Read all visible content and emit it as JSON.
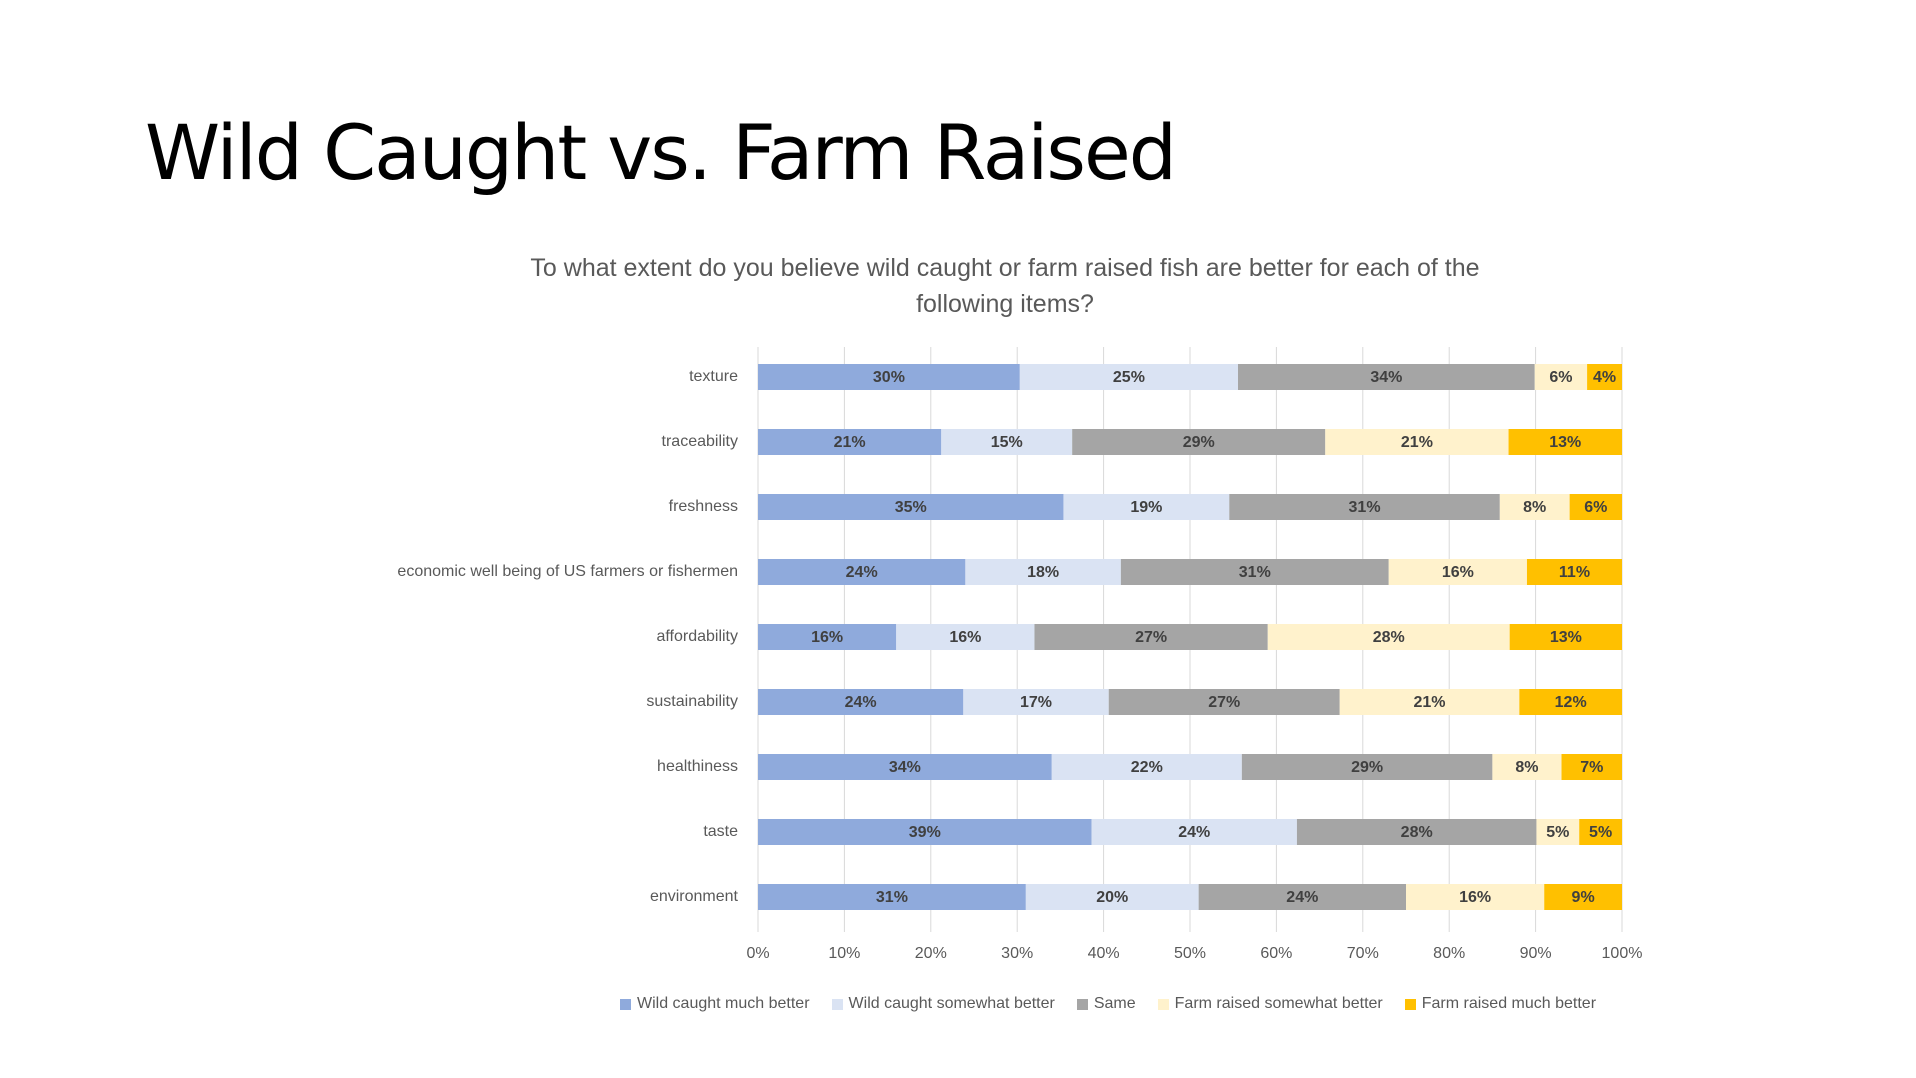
{
  "slide": {
    "title": "Wild Caught vs. Farm Raised"
  },
  "chart_data": {
    "type": "bar",
    "orientation": "horizontal",
    "stacked": "percent",
    "title": "To what extent do you believe wild caught or farm raised fish are better for each of the following items?",
    "categories": [
      "texture",
      "traceability",
      "freshness",
      "economic well being of US farmers or fishermen",
      "affordability",
      "sustainability",
      "healthiness",
      "taste",
      "environment"
    ],
    "series": [
      {
        "name": "Wild caught much better",
        "color": "#8faadc",
        "values": [
          30,
          21,
          35,
          24,
          16,
          24,
          34,
          39,
          31
        ]
      },
      {
        "name": "Wild caught somewhat better",
        "color": "#dae3f3",
        "values": [
          25,
          15,
          19,
          18,
          16,
          17,
          22,
          24,
          20
        ]
      },
      {
        "name": "Same",
        "color": "#a5a5a5",
        "values": [
          34,
          29,
          31,
          31,
          27,
          27,
          29,
          28,
          24
        ]
      },
      {
        "name": "Farm raised somewhat better",
        "color": "#fff2cc",
        "values": [
          6,
          21,
          8,
          16,
          28,
          21,
          8,
          5,
          16
        ]
      },
      {
        "name": "Farm raised much better",
        "color": "#ffc000",
        "values": [
          4,
          13,
          6,
          11,
          13,
          12,
          7,
          5,
          9
        ]
      }
    ],
    "data_labels": [
      [
        "30%",
        "21%",
        "35%",
        "24%",
        "16%",
        "24%",
        "34%",
        "39%",
        "31%"
      ],
      [
        "25%",
        "15%",
        "19%",
        "18%",
        "16%",
        "17%",
        "22%",
        "24%",
        "20%"
      ],
      [
        "34%",
        "29%",
        "31%",
        "31%",
        "27%",
        "27%",
        "29%",
        "28%",
        "24%"
      ],
      [
        "6%",
        "21%",
        "8%",
        "16%",
        "28%",
        "21%",
        "8%",
        "5%",
        "16%"
      ],
      [
        "4%",
        "13%",
        "6%",
        "11%",
        "13%",
        "12%",
        "7%",
        "5%",
        "9%"
      ]
    ],
    "x_ticks": [
      "0%",
      "10%",
      "20%",
      "30%",
      "40%",
      "50%",
      "60%",
      "70%",
      "80%",
      "90%",
      "100%"
    ],
    "xlim": [
      0,
      100
    ],
    "grid": true,
    "legend_position": "bottom",
    "label_color": "#404040",
    "gridline_color": "#d9d9d9"
  }
}
